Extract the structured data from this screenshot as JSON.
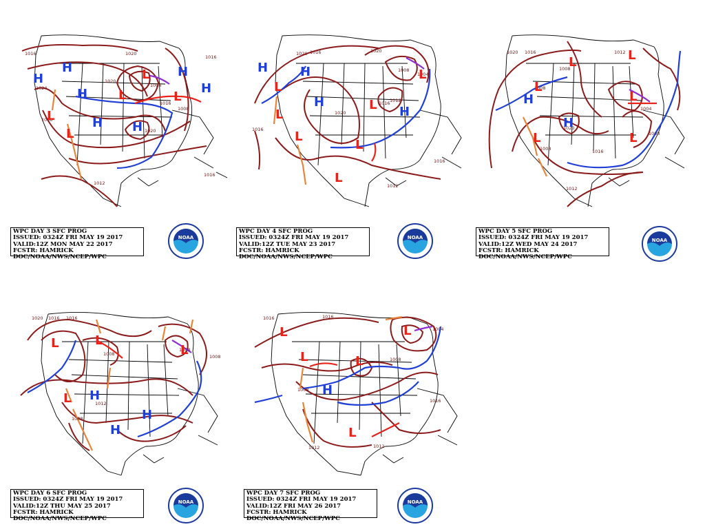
{
  "colors": {
    "isobar": "#8b1a1a",
    "high": "#1f3fd6",
    "low": "#e8231a",
    "trough": "#e8853a",
    "occluded": "#8e2fd0",
    "noaa_dark": "#1a3a9c",
    "noaa_light": "#28a4e0"
  },
  "logo": {
    "text": "NOAA"
  },
  "panels": [
    {
      "id": "day3",
      "info": [
        "WPC DAY 3 SFC PROG",
        "ISSUED: 0324Z FRI MAY 19 2017",
        "VALID:12Z MON MAY 22 2017",
        "FCSTR: HAMRICK",
        "DOC/NOAA/NWS/NCEP/WPC"
      ],
      "isobar_labels": [
        "1016",
        "1020",
        "1020",
        "1016",
        "1024",
        "1004",
        "1016",
        "1008",
        "1020",
        "1012",
        "1016",
        "1008"
      ],
      "centers": [
        "H",
        "H",
        "H",
        "H",
        "H",
        "H",
        "H",
        "L",
        "L",
        "L",
        "L",
        "L"
      ]
    },
    {
      "id": "day4",
      "info": [
        "WPC DAY 4 SFC PROG",
        "ISSUED: 0324Z FRI MAY 19 2017",
        "VALID:12Z TUE MAY 23 2017",
        "FCSTR: HAMRICK",
        "DOC/NOAA/NWS/NCEP/WPC"
      ],
      "isobar_labels": [
        "1020",
        "1016",
        "1020",
        "1008",
        "1004",
        "1016",
        "1012",
        "1020",
        "1016",
        "1016",
        "1012"
      ],
      "centers": [
        "H",
        "H",
        "H",
        "H",
        "L",
        "L",
        "L",
        "L",
        "L",
        "L",
        "L"
      ]
    },
    {
      "id": "day5",
      "info": [
        "WPC DAY 5 SFC PROG",
        "ISSUED: 0324Z FRI MAY 19 2017",
        "VALID:12Z WED MAY 24 2017",
        "FCSTR: HAMRICK",
        "DOC/NOAA/NWS/NCEP/WPC"
      ],
      "isobar_labels": [
        "1020",
        "1016",
        "1008",
        "1008",
        "1012",
        "1004",
        "1020",
        "1008",
        "1016",
        "1008",
        "1012"
      ],
      "centers": [
        "H",
        "H",
        "L",
        "L",
        "L",
        "L",
        "L",
        "L"
      ]
    },
    {
      "id": "day6",
      "info": [
        "WPC DAY 6 SFC PROG",
        "ISSUED: 0324Z FRI MAY 19 2017",
        "VALID:12Z THU MAY 25 2017",
        "FCSTR: HAMRICK",
        "DOC/NOAA/NWS/NCEP/WPC"
      ],
      "isobar_labels": [
        "1020",
        "1016",
        "1016",
        "1008",
        "1008",
        "1012",
        "1008",
        "1008"
      ],
      "centers": [
        "H",
        "H",
        "H",
        "L",
        "L",
        "L",
        "L"
      ]
    },
    {
      "id": "day7",
      "info": [
        "WPC DAY 7 SFC PROG",
        "ISSUED: 0324Z FRI MAY 19 2017",
        "VALID:12Z FRI MAY 26 2017",
        "FCSTR: HAMRICK",
        "DOC/NOAA/NWS/NCEP/WPC"
      ],
      "isobar_labels": [
        "1016",
        "1016",
        "1004",
        "1008",
        "1008",
        "1016",
        "1012",
        "1012"
      ],
      "centers": [
        "H",
        "L",
        "L",
        "L",
        "L",
        "L"
      ]
    }
  ]
}
